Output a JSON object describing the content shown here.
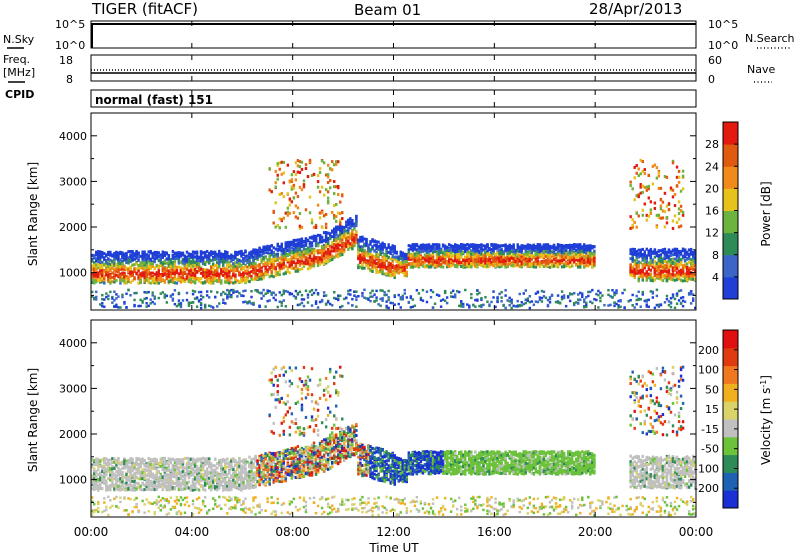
{
  "header": {
    "radar": "TIGER (fitACF)",
    "beam": "Beam 01",
    "date": "28/Apr/2013"
  },
  "colors": {
    "power_scale": [
      "#1f3fd6",
      "#3b66c8",
      "#2e8b57",
      "#6db33f",
      "#e6c21a",
      "#f08a1a",
      "#e05a10",
      "#e21a10"
    ],
    "velocity_scale": [
      "#1a2fd4",
      "#1f62b4",
      "#2e8b57",
      "#6cc23a",
      "#c0c0c0",
      "#d9d36a",
      "#f0b020",
      "#f07820",
      "#e03a10",
      "#e01010"
    ]
  },
  "chart_data": [
    {
      "type": "line",
      "name": "noise-panel",
      "series": [
        {
          "name": "N.Sky",
          "values": []
        },
        {
          "name": "N.Search",
          "values": []
        }
      ],
      "left_label": "N.Sky",
      "right_label": "N.Search",
      "left_ticks": [
        "10^5",
        "10^0"
      ],
      "right_ticks": [
        "10^5",
        "10^0"
      ]
    },
    {
      "type": "line",
      "name": "freq-panel",
      "left_label_line1": "Freq.",
      "left_label_line2": "[MHz]",
      "right_label": "Nave",
      "left_ticks": [
        "18",
        "8"
      ],
      "right_ticks": [
        "60",
        "0"
      ]
    },
    {
      "type": "table",
      "name": "cpid-panel",
      "label": "CPID",
      "value": "normal (fast) 151"
    },
    {
      "type": "heatmap",
      "name": "power",
      "ylabel": "Slant Range [km]",
      "yticks": [
        "4000",
        "3000",
        "2000",
        "1000"
      ],
      "ylim": [
        180,
        4500
      ],
      "colorbar_label": "Power [dB]",
      "colorbar_ticks": [
        "28",
        "24",
        "20",
        "16",
        "12",
        "8",
        "4"
      ]
    },
    {
      "type": "heatmap",
      "name": "velocity",
      "ylabel": "Slant Range [km]",
      "yticks": [
        "4000",
        "3000",
        "2000",
        "1000"
      ],
      "ylim": [
        180,
        4500
      ],
      "colorbar_label": "Velocity [m s",
      "colorbar_label_sup": "-1",
      "colorbar_label_end": "]",
      "colorbar_ticks": [
        "200",
        "100",
        "50",
        "15",
        "-15",
        "-50",
        "-100",
        "-200"
      ]
    }
  ],
  "xaxis": {
    "label": "Time UT",
    "ticks": [
      "00:00",
      "04:00",
      "08:00",
      "12:00",
      "16:00",
      "20:00",
      "00:00"
    ]
  }
}
